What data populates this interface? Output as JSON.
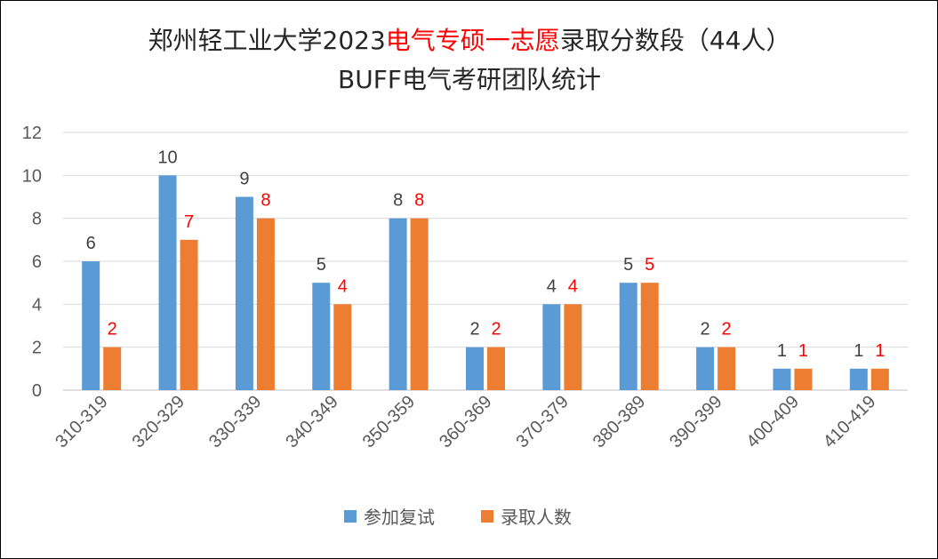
{
  "chart_data": {
    "type": "bar",
    "title_parts": [
      {
        "text": "郑州轻工业大学2023",
        "color": "#262626"
      },
      {
        "text": "电气专硕一志愿",
        "color": "#ff0000"
      },
      {
        "text": "录取分数段（44人）",
        "color": "#262626"
      }
    ],
    "subtitle": "BUFF电气考研团队统计",
    "categories": [
      "310-319",
      "320-329",
      "330-339",
      "340-349",
      "350-359",
      "360-369",
      "370-379",
      "380-389",
      "390-399",
      "400-409",
      "410-419"
    ],
    "series": [
      {
        "name": "参加复试",
        "values": [
          6,
          10,
          9,
          5,
          8,
          2,
          4,
          5,
          2,
          1,
          1
        ],
        "color": "#5b9bd5",
        "label_color": "#404040"
      },
      {
        "name": "录取人数",
        "values": [
          2,
          7,
          8,
          4,
          8,
          2,
          4,
          5,
          2,
          1,
          1
        ],
        "color": "#ed7d31",
        "label_color": "#ff0000"
      }
    ],
    "yticks": [
      "0",
      "2",
      "4",
      "6",
      "8",
      "10",
      "12"
    ],
    "ylim": [
      0,
      12
    ],
    "grid": true,
    "legend_position": "bottom"
  }
}
